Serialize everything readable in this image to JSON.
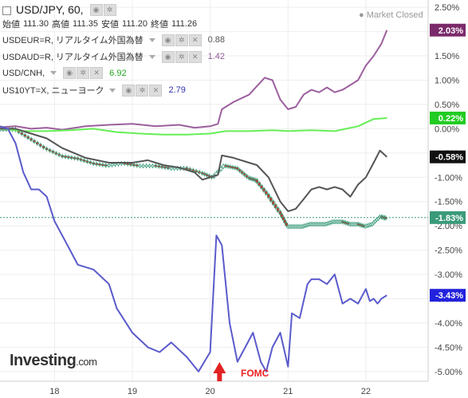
{
  "header": {
    "title": "USD/JPY, 60,",
    "ohlc": [
      {
        "label": "始値",
        "value": "111.30"
      },
      {
        "label": "高値",
        "value": "111.35"
      },
      {
        "label": "安値",
        "value": "111.20"
      },
      {
        "label": "終値",
        "value": "111.26"
      }
    ],
    "market_status": "Market Closed",
    "logo": "Investing",
    "logo_suffix": ".com"
  },
  "legend": [
    {
      "label": "USDEUR=R, リアルタイム外国為替",
      "value": "0.88",
      "color": "#555555"
    },
    {
      "label": "USDAUD=R, リアルタイム外国為替",
      "value": "1.42",
      "color": "#8e5a96"
    },
    {
      "label": "USD/CNH,",
      "value": "6.92",
      "color": "#22aa22"
    },
    {
      "label": "US10YT=X, ニューヨーク",
      "value": "2.79",
      "color": "#3333aa"
    }
  ],
  "colors": {
    "usdjpy_up": "#ffffff",
    "usdjpy_down": "#c0392b",
    "usdjpy_candle": "#3a9a7a",
    "usdeur": "#555555",
    "usdaud": "#9c5f9e",
    "usdcnh": "#66ee55",
    "us10y": "#5a5acc",
    "annotation": "#e22222"
  },
  "annotation": {
    "text": "FOMC",
    "icon": "up-arrow-icon"
  },
  "chart_data": {
    "type": "line",
    "x_ticks": [
      "18",
      "19",
      "20",
      "21",
      "22"
    ],
    "y_ticks": [
      "2.50%",
      "2.00%",
      "1.50%",
      "1.00%",
      "0.50%",
      "0.00%",
      "-0.50%",
      "-1.00%",
      "-1.50%",
      "-2.00%",
      "-2.50%",
      "-3.00%",
      "-3.50%",
      "-4.00%",
      "-4.50%",
      "-5.00%"
    ],
    "ylim": [
      -5.2,
      2.65
    ],
    "xlim": [
      17.3,
      22.8
    ],
    "series": [
      {
        "name": "USDAUD=R",
        "end_label": "2.03%",
        "color": "#9c5f9e",
        "x": [
          17.3,
          17.5,
          17.7,
          17.9,
          18.1,
          18.4,
          18.7,
          19.0,
          19.3,
          19.6,
          19.8,
          20.0,
          20.1,
          20.15,
          20.3,
          20.5,
          20.7,
          20.8,
          20.9,
          21.0,
          21.1,
          21.2,
          21.3,
          21.4,
          21.5,
          21.6,
          21.7,
          21.8,
          21.9,
          22.0,
          22.1,
          22.2,
          22.27
        ],
        "y": [
          0.03,
          0.05,
          0.0,
          0.02,
          -0.02,
          0.05,
          0.08,
          0.1,
          0.05,
          0.08,
          0.02,
          0.05,
          0.1,
          0.4,
          0.55,
          0.7,
          1.05,
          1.0,
          0.6,
          0.4,
          0.45,
          0.7,
          0.8,
          0.75,
          0.85,
          0.75,
          0.8,
          0.9,
          1.0,
          1.3,
          1.5,
          1.75,
          2.03
        ]
      },
      {
        "name": "USD/CNH",
        "end_label": "0.22%",
        "color": "#66ee55",
        "x": [
          17.3,
          17.6,
          17.9,
          18.2,
          18.5,
          18.8,
          19.1,
          19.4,
          19.7,
          20.0,
          20.2,
          20.5,
          20.8,
          21.0,
          21.3,
          21.6,
          21.9,
          22.1,
          22.27
        ],
        "y": [
          0.0,
          -0.05,
          -0.05,
          -0.03,
          0.0,
          -0.07,
          -0.1,
          -0.12,
          -0.12,
          -0.1,
          -0.05,
          -0.05,
          -0.03,
          -0.05,
          -0.03,
          -0.05,
          0.05,
          0.2,
          0.22
        ]
      },
      {
        "name": "USDEUR=R",
        "end_label": "-0.58%",
        "color": "#555555",
        "x": [
          17.3,
          17.5,
          17.7,
          17.9,
          18.1,
          18.4,
          18.7,
          19.0,
          19.2,
          19.4,
          19.6,
          19.8,
          19.9,
          20.0,
          20.1,
          20.15,
          20.3,
          20.5,
          20.6,
          20.75,
          20.9,
          21.0,
          21.1,
          21.2,
          21.3,
          21.4,
          21.5,
          21.6,
          21.7,
          21.8,
          21.9,
          22.0,
          22.1,
          22.18,
          22.27
        ],
        "y": [
          0.0,
          0.0,
          -0.1,
          -0.2,
          -0.4,
          -0.6,
          -0.7,
          -0.7,
          -0.65,
          -0.75,
          -0.8,
          -0.9,
          -1.05,
          -1.0,
          -0.95,
          -0.55,
          -0.6,
          -0.7,
          -0.75,
          -1.0,
          -1.5,
          -1.7,
          -1.65,
          -1.45,
          -1.25,
          -1.2,
          -1.25,
          -1.2,
          -1.25,
          -1.4,
          -1.15,
          -1.0,
          -0.7,
          -0.45,
          -0.58
        ]
      },
      {
        "name": "US10YT=X",
        "end_label": "-3.43%",
        "color": "#5a5acc",
        "x": [
          17.3,
          17.4,
          17.5,
          17.6,
          17.7,
          17.8,
          17.9,
          18.0,
          18.1,
          18.2,
          18.3,
          18.5,
          18.7,
          18.8,
          19.0,
          19.2,
          19.35,
          19.5,
          19.7,
          19.85,
          20.0,
          20.08,
          20.15,
          20.25,
          20.35,
          20.45,
          20.55,
          20.65,
          20.72,
          20.8,
          20.9,
          21.0,
          21.05,
          21.15,
          21.25,
          21.3,
          21.4,
          21.5,
          21.6,
          21.7,
          21.8,
          21.9,
          22.0,
          22.05,
          22.1,
          22.15,
          22.2,
          22.27
        ],
        "y": [
          0.05,
          0.0,
          -0.3,
          -0.9,
          -1.25,
          -1.25,
          -1.4,
          -1.9,
          -2.2,
          -2.5,
          -2.8,
          -2.9,
          -3.2,
          -3.7,
          -4.2,
          -4.5,
          -4.6,
          -4.4,
          -4.7,
          -5.0,
          -4.6,
          -2.2,
          -2.4,
          -4.0,
          -4.8,
          -4.5,
          -4.2,
          -4.8,
          -5.0,
          -4.5,
          -4.2,
          -4.9,
          -3.8,
          -3.9,
          -3.2,
          -3.1,
          -3.1,
          -3.2,
          -3.0,
          -3.6,
          -3.5,
          -3.6,
          -3.3,
          -3.55,
          -3.5,
          -3.6,
          -3.5,
          -3.43
        ]
      }
    ],
    "candles_series": {
      "name": "USD/JPY",
      "end_label": "-1.83%",
      "last_value": -1.83,
      "x": [
        17.3,
        17.5,
        17.7,
        17.9,
        18.1,
        18.3,
        18.5,
        18.7,
        18.9,
        19.1,
        19.3,
        19.5,
        19.7,
        19.9,
        20.05,
        20.2,
        20.35,
        20.5,
        20.6,
        20.75,
        20.9,
        21.0,
        21.1,
        21.2,
        21.3,
        21.4,
        21.5,
        21.6,
        21.7,
        21.8,
        21.9,
        22.0,
        22.1,
        22.2,
        22.27
      ],
      "y": [
        0.0,
        0.0,
        -0.2,
        -0.4,
        -0.55,
        -0.6,
        -0.7,
        -0.75,
        -0.7,
        -0.75,
        -0.75,
        -0.8,
        -0.8,
        -0.9,
        -1.0,
        -0.75,
        -0.8,
        -1.0,
        -1.05,
        -1.35,
        -1.7,
        -2.0,
        -2.0,
        -2.0,
        -1.95,
        -1.95,
        -1.95,
        -1.9,
        -1.9,
        -1.95,
        -1.95,
        -2.0,
        -1.95,
        -1.8,
        -1.83
      ]
    }
  }
}
